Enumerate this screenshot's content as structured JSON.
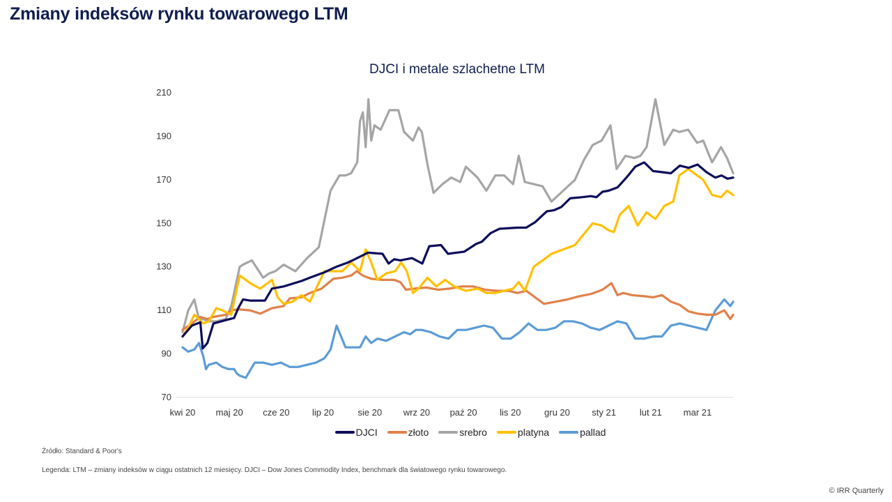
{
  "page": {
    "title": "Zmiany indeksów rynku towarowego LTM",
    "source": "Źródło: Standard & Poor's",
    "note": "Legenda: LTM – zmiany indeksów w ciągu ostatnich 12 miesięcy. DJCI – Dow Jones Commodity Index, benchmark dla światowego rynku towarowego.",
    "copyright": "© IRR Quarterly"
  },
  "chart_data": {
    "type": "line",
    "title": "DJCI i metale szlachetne LTM",
    "xlabel": "",
    "ylabel": "",
    "ylim": [
      70,
      210
    ],
    "yticks": [
      70,
      90,
      110,
      130,
      150,
      170,
      190,
      210
    ],
    "grid": false,
    "legend_position": "bottom",
    "categories": [
      "kwi 20",
      "maj 20",
      "cze 20",
      "lip 20",
      "sie 20",
      "wrz 20",
      "paź 20",
      "lis 20",
      "gru 20",
      "sty 21",
      "lut 21",
      "mar 21"
    ],
    "x_range": [
      0,
      11.8
    ],
    "series": [
      {
        "name": "DJCI",
        "color": "#0c0c5a",
        "x": [
          0,
          0.2,
          0.38,
          0.43,
          0.53,
          0.66,
          0.92,
          1.1,
          1.19,
          1.29,
          1.44,
          1.76,
          1.91,
          2.16,
          2.54,
          2.72,
          3.03,
          3.28,
          3.53,
          3.63,
          3.96,
          4.27,
          4.4,
          4.52,
          4.65,
          4.9,
          5.12,
          5.27,
          5.52,
          5.67,
          6.02,
          6.27,
          6.39,
          6.58,
          6.77,
          7.15,
          7.34,
          7.53,
          7.78,
          7.93,
          8.09,
          8.28,
          8.53,
          8.72,
          8.84,
          8.97,
          9.1,
          9.29,
          9.48,
          9.67,
          9.86,
          10.05,
          10.24,
          10.43,
          10.62,
          10.81,
          11.0,
          11.19,
          11.38,
          11.51,
          11.64,
          11.76
        ],
        "values": [
          98,
          103,
          104.5,
          92.5,
          95,
          104,
          105.5,
          106.5,
          111,
          115,
          114.5,
          114.5,
          120,
          121,
          123.5,
          125,
          127.5,
          130,
          132,
          133,
          136.5,
          136,
          131.5,
          133.5,
          133,
          134,
          131.5,
          139.5,
          140,
          136,
          137,
          140.5,
          141.5,
          145.5,
          147.5,
          148,
          148,
          150.5,
          155.5,
          156,
          157.5,
          161.5,
          162,
          162.5,
          162,
          164.5,
          165,
          166.5,
          171,
          176,
          178,
          174,
          173.5,
          173,
          176.5,
          175.5,
          177,
          173.5,
          171,
          172,
          170.5,
          171
        ]
      },
      {
        "name": "złoto",
        "color": "#e0814a",
        "x": [
          0,
          0.2,
          0.38,
          0.53,
          0.66,
          0.92,
          1.04,
          1.19,
          1.44,
          1.66,
          1.91,
          2.16,
          2.29,
          2.54,
          2.72,
          2.97,
          3.22,
          3.41,
          3.6,
          3.72,
          3.85,
          4.03,
          4.27,
          4.52,
          4.65,
          4.77,
          4.96,
          5.21,
          5.46,
          5.71,
          5.96,
          6.21,
          6.46,
          6.71,
          6.96,
          7.15,
          7.34,
          7.53,
          7.72,
          7.97,
          8.22,
          8.47,
          8.72,
          8.97,
          9.16,
          9.29,
          9.41,
          9.6,
          9.86,
          10.05,
          10.24,
          10.43,
          10.62,
          10.81,
          11.0,
          11.19,
          11.38,
          11.57,
          11.7,
          11.76
        ],
        "values": [
          101,
          104,
          107,
          106,
          107,
          108,
          110,
          110.5,
          110,
          108.5,
          111,
          112,
          115.5,
          116,
          118,
          120,
          124.5,
          125,
          126,
          128,
          126,
          124.5,
          124,
          124,
          123,
          119.5,
          120,
          120.5,
          119.5,
          120,
          121,
          121,
          119.5,
          119,
          119,
          118,
          119,
          116,
          113,
          114,
          115,
          116.5,
          117.5,
          119.5,
          122.5,
          117,
          118,
          117,
          116.5,
          116,
          117,
          114,
          112.5,
          109.5,
          108.5,
          108,
          108,
          110,
          106,
          108
        ]
      },
      {
        "name": "srebro",
        "color": "#a5a5a5",
        "x": [
          0,
          0.12,
          0.25,
          0.35,
          0.44,
          0.56,
          0.72,
          0.92,
          1.04,
          1.16,
          1.22,
          1.29,
          1.48,
          1.72,
          1.85,
          1.98,
          2.16,
          2.41,
          2.66,
          2.91,
          3.16,
          3.35,
          3.48,
          3.6,
          3.73,
          3.79,
          3.85,
          3.91,
          3.97,
          4.03,
          4.1,
          4.23,
          4.42,
          4.54,
          4.61,
          4.73,
          4.92,
          5.04,
          5.11,
          5.23,
          5.36,
          5.55,
          5.74,
          5.93,
          6.05,
          6.3,
          6.49,
          6.68,
          6.87,
          7.06,
          7.18,
          7.31,
          7.5,
          7.69,
          7.88,
          8.13,
          8.38,
          8.57,
          8.76,
          8.95,
          9.14,
          9.27,
          9.46,
          9.65,
          9.78,
          9.91,
          10.1,
          10.29,
          10.48,
          10.61,
          10.8,
          10.99,
          11.12,
          11.31,
          11.5,
          11.63,
          11.76
        ],
        "values": [
          100,
          110,
          115,
          106,
          106,
          105,
          105,
          106,
          112,
          124,
          130,
          131,
          133,
          125,
          127,
          128,
          131,
          128,
          134,
          139,
          165,
          172,
          172,
          173,
          178,
          197,
          201,
          185,
          207,
          188,
          195,
          193,
          202,
          202,
          202,
          192,
          188,
          194,
          192,
          177,
          164,
          168,
          171,
          169,
          176,
          171,
          165,
          172,
          172,
          168,
          181,
          169,
          168,
          167,
          160,
          165,
          170,
          179,
          186,
          188,
          195,
          175,
          181,
          180,
          181,
          185,
          207,
          186,
          193,
          192,
          193,
          187,
          188,
          178,
          185,
          180,
          173
        ]
      },
      {
        "name": "platyna",
        "color": "#ffc000",
        "x": [
          0,
          0.12,
          0.25,
          0.35,
          0.44,
          0.56,
          0.72,
          0.85,
          1.04,
          1.16,
          1.22,
          1.35,
          1.48,
          1.66,
          1.91,
          2.03,
          2.16,
          2.35,
          2.54,
          2.72,
          2.85,
          3.03,
          3.22,
          3.41,
          3.6,
          3.79,
          3.91,
          4.03,
          4.16,
          4.35,
          4.54,
          4.67,
          4.79,
          4.92,
          5.04,
          5.23,
          5.42,
          5.61,
          5.8,
          6.05,
          6.3,
          6.49,
          6.68,
          6.87,
          7.06,
          7.18,
          7.31,
          7.5,
          7.69,
          7.88,
          8.13,
          8.38,
          8.57,
          8.76,
          8.95,
          9.08,
          9.21,
          9.34,
          9.53,
          9.72,
          9.91,
          10.1,
          10.29,
          10.48,
          10.61,
          10.8,
          10.99,
          11.12,
          11.31,
          11.5,
          11.63,
          11.76
        ],
        "values": [
          98,
          102,
          108,
          106,
          104,
          105,
          111,
          110,
          108,
          120,
          126,
          124,
          122,
          120,
          124,
          116,
          113,
          114,
          117,
          114,
          120,
          128,
          128,
          128,
          132,
          128,
          138,
          132,
          124,
          127,
          128,
          132,
          128,
          118,
          120,
          125,
          121,
          124,
          121,
          119,
          120,
          118,
          118,
          119,
          120,
          123,
          119,
          130,
          133,
          136,
          138,
          140,
          145,
          150,
          149,
          147,
          146,
          154,
          158,
          149,
          155,
          152,
          158,
          160,
          172,
          175,
          172,
          170,
          163,
          162,
          165,
          163
        ]
      },
      {
        "name": "pallad",
        "color": "#5b9bd5",
        "x": [
          0,
          0.12,
          0.25,
          0.35,
          0.44,
          0.5,
          0.56,
          0.72,
          0.85,
          0.98,
          1.1,
          1.16,
          1.22,
          1.35,
          1.54,
          1.72,
          1.91,
          2.1,
          2.29,
          2.47,
          2.66,
          2.85,
          3.03,
          3.16,
          3.29,
          3.48,
          3.67,
          3.79,
          3.91,
          4.03,
          4.16,
          4.35,
          4.54,
          4.73,
          4.86,
          4.98,
          5.11,
          5.3,
          5.49,
          5.68,
          5.87,
          6.06,
          6.25,
          6.44,
          6.63,
          6.82,
          7.01,
          7.2,
          7.39,
          7.58,
          7.77,
          7.96,
          8.15,
          8.34,
          8.53,
          8.72,
          8.91,
          9.1,
          9.29,
          9.48,
          9.67,
          9.86,
          10.05,
          10.24,
          10.43,
          10.62,
          10.81,
          11.0,
          11.19,
          11.38,
          11.57,
          11.7,
          11.76
        ],
        "values": [
          93,
          91,
          92,
          95,
          89,
          83,
          85,
          86,
          84,
          83,
          83,
          81,
          80,
          79,
          86,
          86,
          85,
          86,
          84,
          84,
          85,
          86,
          88,
          92,
          103,
          93,
          93,
          93,
          98,
          95,
          97,
          96,
          98,
          100,
          99,
          101,
          101,
          100,
          98,
          97,
          101,
          101,
          102,
          103,
          102,
          97,
          97,
          100,
          104,
          101,
          101,
          102,
          105,
          105,
          104,
          102,
          101,
          103,
          105,
          104,
          97,
          97,
          98,
          98,
          103,
          104,
          103,
          102,
          101,
          110,
          115,
          112,
          114
        ]
      }
    ]
  }
}
